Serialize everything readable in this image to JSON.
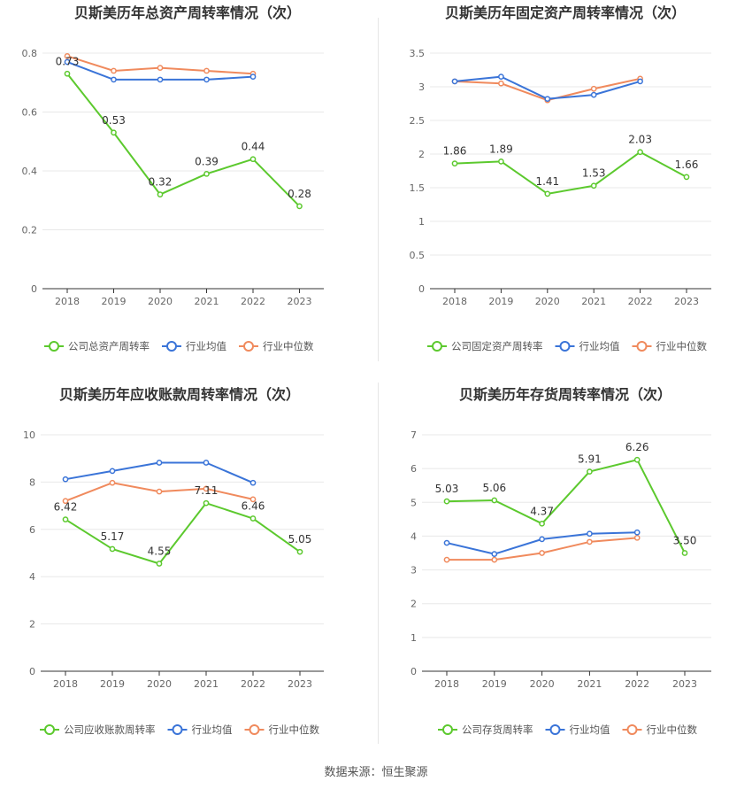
{
  "footer": {
    "source": "数据来源：恒生聚源"
  },
  "colors": {
    "company": "#5cc92e",
    "avg": "#3a74d8",
    "median": "#f08a5d",
    "grid": "#e8e8e8",
    "axis": "#333333",
    "tick": "#666666",
    "title": "#333333"
  },
  "chart_data": [
    {
      "type": "line",
      "title": "贝斯美历年总资产周转率情况（次）",
      "categories": [
        "2018",
        "2019",
        "2020",
        "2021",
        "2022",
        "2023"
      ],
      "ylim": [
        0,
        0.8
      ],
      "yticks": [
        0,
        0.2,
        0.4,
        0.6,
        0.8
      ],
      "ytick_labels": [
        "0",
        "0.2",
        "0.4",
        "0.6",
        "0.8"
      ],
      "series": [
        {
          "name": "公司总资产周转率",
          "key": "company",
          "values": [
            0.73,
            0.53,
            0.32,
            0.39,
            0.44,
            0.28
          ],
          "labels": [
            "0.73",
            "0.53",
            "0.32",
            "0.39",
            "0.44",
            "0.28"
          ]
        },
        {
          "name": "行业均值",
          "key": "avg",
          "values": [
            0.77,
            0.71,
            0.71,
            0.71,
            0.72,
            null
          ]
        },
        {
          "name": "行业中位数",
          "key": "median",
          "values": [
            0.79,
            0.74,
            0.75,
            0.74,
            0.73,
            null
          ]
        }
      ]
    },
    {
      "type": "line",
      "title": "贝斯美历年固定资产周转率情况（次）",
      "categories": [
        "2018",
        "2019",
        "2020",
        "2021",
        "2022",
        "2023"
      ],
      "ylim": [
        0,
        3.5
      ],
      "yticks": [
        0,
        0.5,
        1,
        1.5,
        2,
        2.5,
        3,
        3.5
      ],
      "ytick_labels": [
        "0",
        "0.5",
        "1",
        "1.5",
        "2",
        "2.5",
        "3",
        "3.5"
      ],
      "series": [
        {
          "name": "公司固定资产周转率",
          "key": "company",
          "values": [
            1.86,
            1.89,
            1.41,
            1.53,
            2.03,
            1.66
          ],
          "labels": [
            "1.86",
            "1.89",
            "1.41",
            "1.53",
            "2.03",
            "1.66"
          ]
        },
        {
          "name": "行业均值",
          "key": "avg",
          "values": [
            3.08,
            3.15,
            2.82,
            2.88,
            3.08,
            null
          ]
        },
        {
          "name": "行业中位数",
          "key": "median",
          "values": [
            3.08,
            3.05,
            2.8,
            2.97,
            3.12,
            null
          ]
        }
      ]
    },
    {
      "type": "line",
      "title": "贝斯美历年应收账款周转率情况（次）",
      "categories": [
        "2018",
        "2019",
        "2020",
        "2021",
        "2022",
        "2023"
      ],
      "ylim": [
        0,
        10
      ],
      "yticks": [
        0,
        2,
        4,
        6,
        8,
        10
      ],
      "ytick_labels": [
        "0",
        "2",
        "4",
        "6",
        "8",
        "10"
      ],
      "series": [
        {
          "name": "公司应收账款周转率",
          "key": "company",
          "values": [
            6.42,
            5.17,
            4.55,
            7.11,
            6.46,
            5.05
          ],
          "labels": [
            "6.42",
            "5.17",
            "4.55",
            "7.11",
            "6.46",
            "5.05"
          ]
        },
        {
          "name": "行业均值",
          "key": "avg",
          "values": [
            8.12,
            8.47,
            8.82,
            8.82,
            7.97,
            null
          ]
        },
        {
          "name": "行业中位数",
          "key": "median",
          "values": [
            7.2,
            7.97,
            7.6,
            7.72,
            7.27,
            null
          ]
        }
      ]
    },
    {
      "type": "line",
      "title": "贝斯美历年存货周转率情况（次）",
      "categories": [
        "2018",
        "2019",
        "2020",
        "2021",
        "2022",
        "2023"
      ],
      "ylim": [
        0,
        7
      ],
      "yticks": [
        0,
        1,
        2,
        3,
        4,
        5,
        6,
        7
      ],
      "ytick_labels": [
        "0",
        "1",
        "2",
        "3",
        "4",
        "5",
        "6",
        "7"
      ],
      "series": [
        {
          "name": "公司存货周转率",
          "key": "company",
          "values": [
            5.03,
            5.06,
            4.37,
            5.91,
            6.26,
            3.5
          ],
          "labels": [
            "5.03",
            "5.06",
            "4.37",
            "5.91",
            "6.26",
            "3.50"
          ]
        },
        {
          "name": "行业均值",
          "key": "avg",
          "values": [
            3.8,
            3.47,
            3.91,
            4.07,
            4.11,
            null
          ]
        },
        {
          "name": "行业中位数",
          "key": "median",
          "values": [
            3.3,
            3.3,
            3.5,
            3.83,
            3.95,
            null
          ]
        }
      ]
    }
  ]
}
